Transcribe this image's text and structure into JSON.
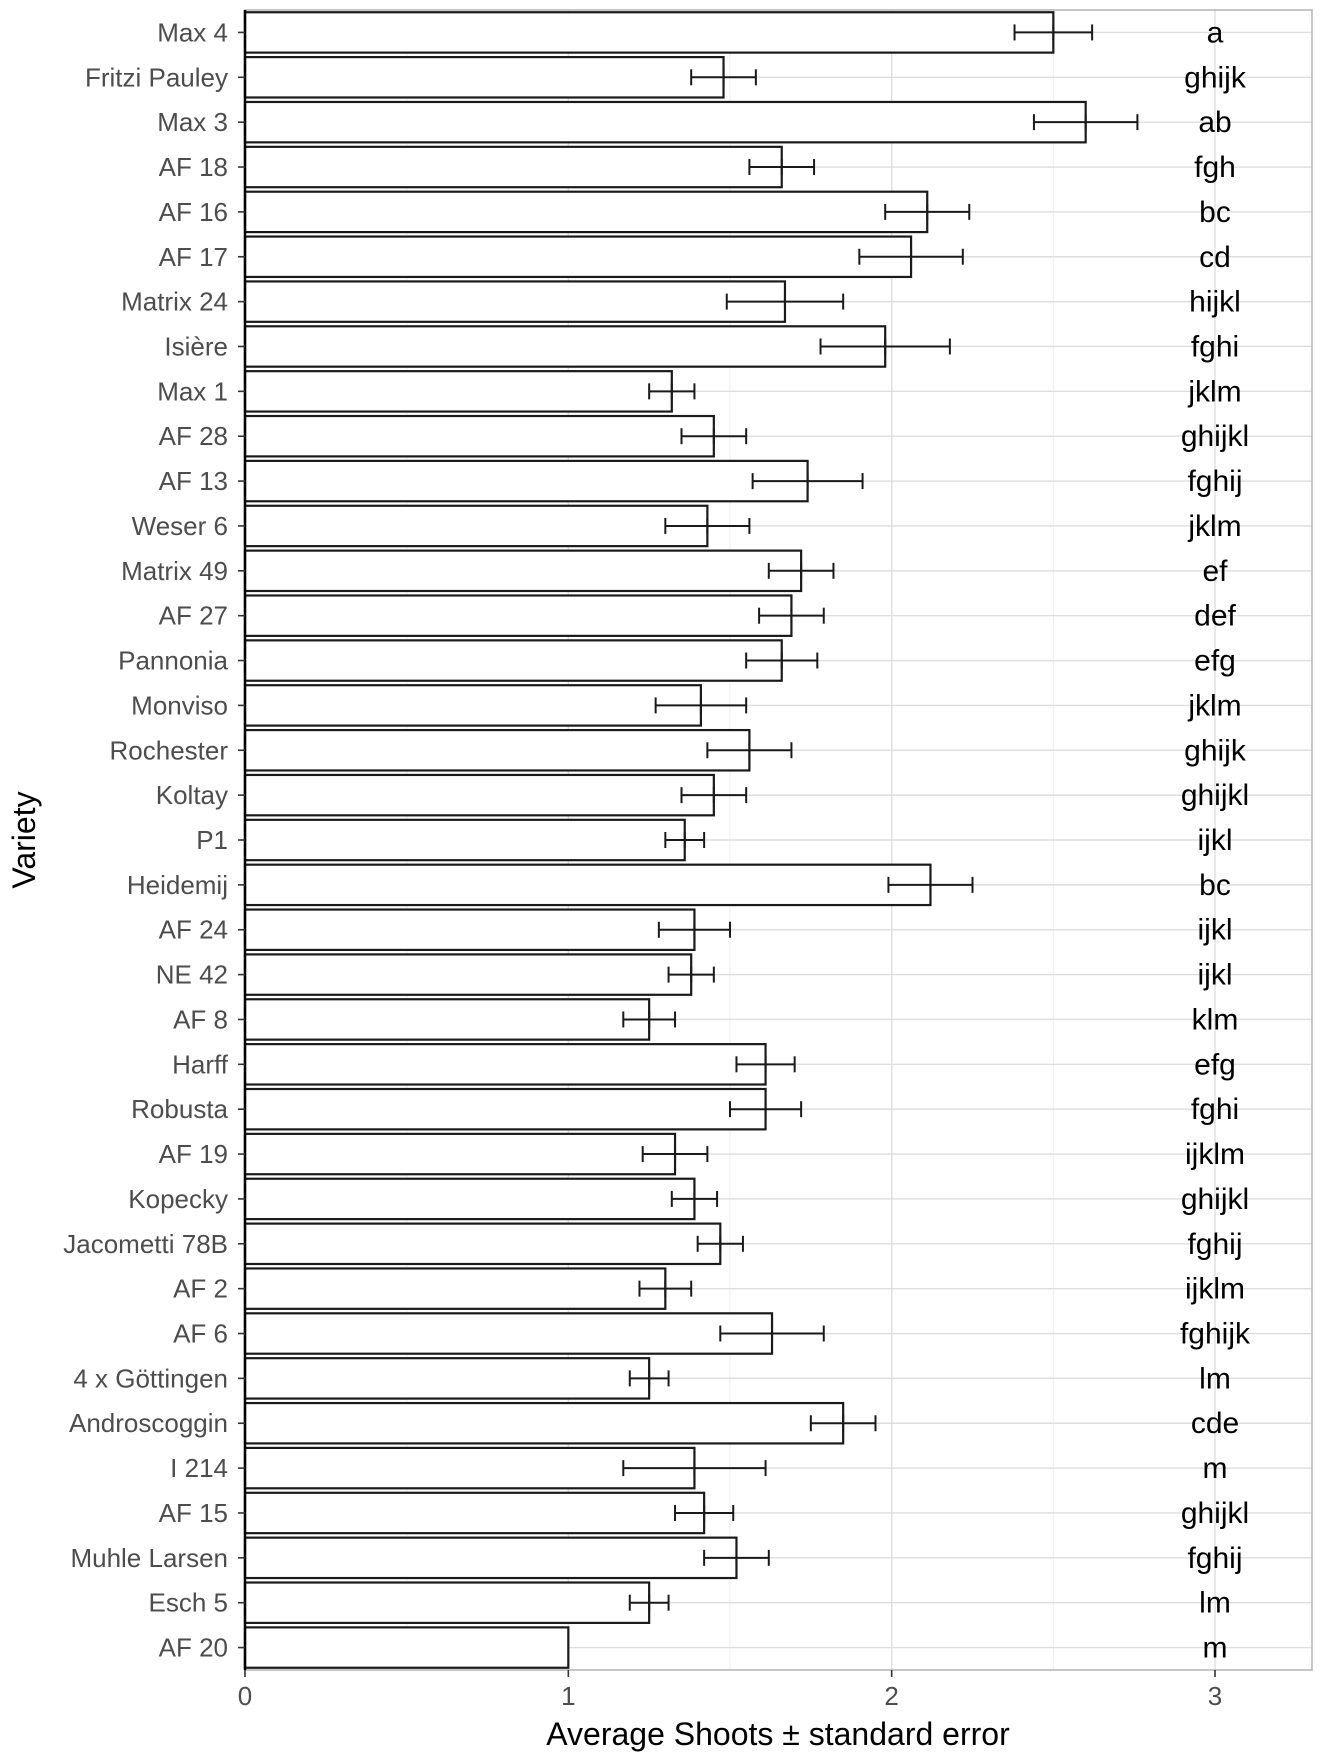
{
  "chart_data": {
    "type": "bar",
    "orientation": "horizontal",
    "xlabel": "Average Shoots ± standard error",
    "ylabel": "Variety",
    "xlim": [
      0,
      3.3
    ],
    "xticks": [
      0,
      1,
      2,
      3
    ],
    "grid": true,
    "categories": [
      "Max 4",
      "Fritzi Pauley",
      "Max 3",
      "AF 18",
      "AF 16",
      "AF 17",
      "Matrix 24",
      "Isière",
      "Max 1",
      "AF 28",
      "AF 13",
      "Weser 6",
      "Matrix 49",
      "AF 27",
      "Pannonia",
      "Monviso",
      "Rochester",
      "Koltay",
      "P1",
      "Heidemij",
      "AF 24",
      "NE 42",
      "AF 8",
      "Harff",
      "Robusta",
      "AF 19",
      "Kopecky",
      "Jacometti 78B",
      "AF 2",
      "AF 6",
      "4 x Göttingen",
      "Androscoggin",
      "I 214",
      "AF 15",
      "Muhle Larsen",
      "Esch 5",
      "AF 20"
    ],
    "values": [
      2.5,
      1.48,
      2.6,
      1.66,
      2.11,
      2.06,
      1.67,
      1.98,
      1.32,
      1.45,
      1.74,
      1.43,
      1.72,
      1.69,
      1.66,
      1.41,
      1.56,
      1.45,
      1.36,
      2.12,
      1.39,
      1.38,
      1.25,
      1.61,
      1.61,
      1.33,
      1.39,
      1.47,
      1.3,
      1.63,
      1.25,
      1.85,
      1.39,
      1.42,
      1.52,
      1.25,
      1.0
    ],
    "errors": [
      0.12,
      0.1,
      0.16,
      0.1,
      0.13,
      0.16,
      0.18,
      0.2,
      0.07,
      0.1,
      0.17,
      0.13,
      0.1,
      0.1,
      0.11,
      0.14,
      0.13,
      0.1,
      0.06,
      0.13,
      0.11,
      0.07,
      0.08,
      0.09,
      0.11,
      0.1,
      0.07,
      0.07,
      0.08,
      0.16,
      0.06,
      0.1,
      0.22,
      0.09,
      0.1,
      0.06,
      0.0
    ],
    "significance_letters": [
      "a",
      "ghijk",
      "ab",
      "fgh",
      "bc",
      "cd",
      "hijkl",
      "fghi",
      "jklm",
      "ghijkl",
      "fghij",
      "jklm",
      "ef",
      "def",
      "efg",
      "jklm",
      "ghijk",
      "ghijkl",
      "ijkl",
      "bc",
      "ijkl",
      "ijkl",
      "klm",
      "efg",
      "fghi",
      "ijklm",
      "ghijkl",
      "fghij",
      "ijklm",
      "fghijk",
      "lm",
      "cde",
      "m",
      "ghijkl",
      "fghij",
      "lm",
      "m"
    ],
    "significance_x": 3
  }
}
